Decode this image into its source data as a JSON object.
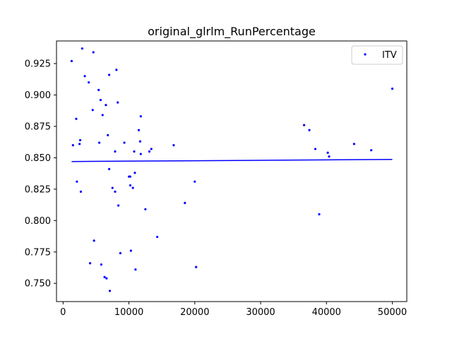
{
  "chart_data": {
    "type": "scatter",
    "title": "original_glrlm_RunPercentage",
    "xlabel": "",
    "ylabel": "",
    "xlim": [
      -1000,
      52200
    ],
    "ylim": [
      0.7355,
      0.943
    ],
    "xticks": [
      0,
      10000,
      20000,
      30000,
      40000,
      50000
    ],
    "xtick_labels": [
      "0",
      "10000",
      "20000",
      "30000",
      "40000",
      "50000"
    ],
    "yticks": [
      0.75,
      0.775,
      0.8,
      0.825,
      0.85,
      0.875,
      0.9,
      0.925
    ],
    "ytick_labels": [
      "0.750",
      "0.775",
      "0.800",
      "0.825",
      "0.850",
      "0.875",
      "0.900",
      "0.925"
    ],
    "grid": false,
    "legend": {
      "position": "top-right",
      "entries": [
        "ITV"
      ]
    },
    "series": [
      {
        "name": "ITV",
        "color": "#0000ff",
        "points": [
          [
            1300,
            0.927
          ],
          [
            1500,
            0.86
          ],
          [
            2000,
            0.881
          ],
          [
            2100,
            0.831
          ],
          [
            2500,
            0.861
          ],
          [
            2600,
            0.864
          ],
          [
            2700,
            0.823
          ],
          [
            2900,
            0.937
          ],
          [
            3300,
            0.915
          ],
          [
            3900,
            0.91
          ],
          [
            4100,
            0.766
          ],
          [
            4500,
            0.888
          ],
          [
            4600,
            0.934
          ],
          [
            4700,
            0.784
          ],
          [
            5400,
            0.904
          ],
          [
            5500,
            0.862
          ],
          [
            5700,
            0.896
          ],
          [
            5800,
            0.765
          ],
          [
            6000,
            0.884
          ],
          [
            6300,
            0.755
          ],
          [
            6500,
            0.892
          ],
          [
            6600,
            0.754
          ],
          [
            6800,
            0.868
          ],
          [
            7000,
            0.841
          ],
          [
            7000,
            0.916
          ],
          [
            7100,
            0.744
          ],
          [
            7500,
            0.826
          ],
          [
            7900,
            0.855
          ],
          [
            7900,
            0.823
          ],
          [
            8100,
            0.92
          ],
          [
            8300,
            0.894
          ],
          [
            8400,
            0.812
          ],
          [
            8700,
            0.774
          ],
          [
            9300,
            0.862
          ],
          [
            10000,
            0.835
          ],
          [
            10200,
            0.835
          ],
          [
            10200,
            0.828
          ],
          [
            10300,
            0.776
          ],
          [
            10600,
            0.826
          ],
          [
            10800,
            0.855
          ],
          [
            10900,
            0.838
          ],
          [
            11000,
            0.761
          ],
          [
            11500,
            0.872
          ],
          [
            11700,
            0.863
          ],
          [
            11800,
            0.853
          ],
          [
            11800,
            0.883
          ],
          [
            12500,
            0.809
          ],
          [
            13100,
            0.855
          ],
          [
            13400,
            0.857
          ],
          [
            14300,
            0.787
          ],
          [
            16800,
            0.86
          ],
          [
            18500,
            0.814
          ],
          [
            20000,
            0.831
          ],
          [
            20200,
            0.763
          ],
          [
            36600,
            0.876
          ],
          [
            37400,
            0.872
          ],
          [
            38300,
            0.857
          ],
          [
            38900,
            0.805
          ],
          [
            40200,
            0.854
          ],
          [
            40400,
            0.851
          ],
          [
            44200,
            0.861
          ],
          [
            46800,
            0.856
          ],
          [
            50000,
            0.905
          ]
        ]
      }
    ],
    "trend_line": {
      "color": "#0000ff",
      "x": [
        1300,
        10000,
        20000,
        30000,
        40000,
        50000
      ],
      "y": [
        0.847,
        0.8473,
        0.8476,
        0.848,
        0.8483,
        0.8487
      ]
    }
  }
}
